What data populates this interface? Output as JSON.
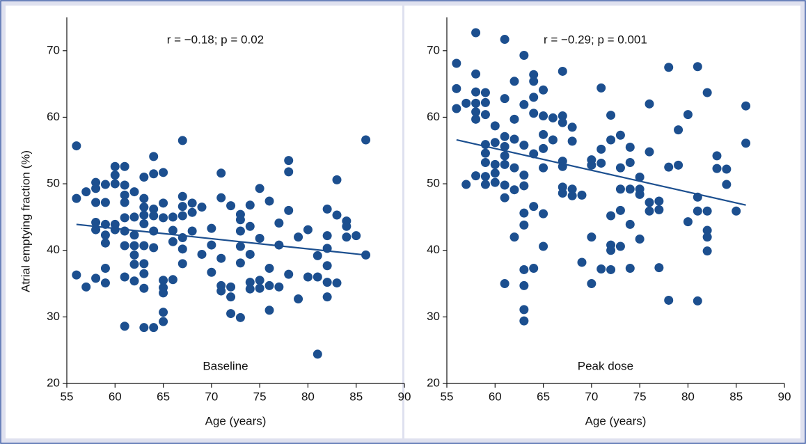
{
  "chart_data": [
    {
      "type": "scatter",
      "panel_label": "Baseline",
      "annotation": "r = −0.18; p = 0.02",
      "ylabel": "Atrial emptying fraction (%)",
      "xlabel": "Age (years)",
      "xlim": [
        55,
        90
      ],
      "ylim": [
        20,
        75
      ],
      "xticks": [
        55,
        60,
        65,
        70,
        75,
        80,
        85,
        90
      ],
      "yticks": [
        20,
        30,
        40,
        50,
        60,
        70
      ],
      "color": "#1c4f8f",
      "x": [
        56,
        56,
        56,
        57,
        57,
        58,
        58,
        58,
        58,
        58,
        58,
        59,
        59,
        59,
        59,
        59,
        59,
        59,
        60,
        60,
        60,
        60,
        60,
        61,
        61,
        61,
        61,
        61,
        61,
        61,
        61,
        61,
        62,
        62,
        62,
        62,
        62,
        62,
        62,
        63,
        63,
        63,
        63,
        63,
        63,
        63,
        63,
        63,
        63,
        64,
        64,
        64,
        64,
        64,
        64,
        64,
        65,
        65,
        65,
        65,
        65,
        65,
        65,
        65,
        66,
        66,
        66,
        66,
        67,
        67,
        67,
        67,
        67,
        67,
        67,
        68,
        68,
        68,
        69,
        69,
        70,
        70,
        70,
        71,
        71,
        71,
        71,
        71,
        72,
        72,
        72,
        72,
        73,
        73,
        73,
        73,
        73,
        73,
        74,
        74,
        74,
        74,
        74,
        75,
        75,
        75,
        75,
        76,
        76,
        76,
        76,
        77,
        77,
        77,
        78,
        78,
        78,
        78,
        79,
        79,
        80,
        80,
        81,
        81,
        81,
        82,
        82,
        82,
        82,
        82,
        82,
        83,
        83,
        83,
        84,
        84,
        84,
        85,
        86,
        86
      ],
      "values": [
        55.7,
        47.8,
        36.3,
        48.8,
        34.5,
        50.2,
        49.3,
        47.2,
        44.2,
        43.1,
        35.8,
        49.9,
        47.2,
        43.9,
        42.3,
        41.1,
        37.3,
        35.1,
        52.6,
        51.3,
        50.0,
        43.9,
        43.1,
        52.6,
        49.8,
        48.3,
        47.2,
        44.9,
        42.9,
        40.7,
        36.0,
        28.6,
        48.8,
        45.0,
        42.3,
        40.7,
        39.3,
        37.9,
        35.4,
        51.0,
        47.8,
        46.5,
        45.3,
        44.0,
        40.7,
        38.0,
        36.5,
        34.3,
        28.4,
        54.1,
        51.5,
        46.2,
        45.2,
        42.9,
        40.4,
        28.4,
        51.7,
        47.1,
        44.9,
        35.5,
        34.4,
        33.6,
        30.7,
        29.3,
        45.0,
        43.0,
        41.3,
        35.6,
        56.5,
        48.1,
        46.6,
        45.2,
        41.9,
        40.2,
        38.0,
        47.1,
        45.7,
        42.9,
        46.5,
        39.4,
        43.3,
        40.8,
        36.7,
        51.6,
        47.9,
        38.8,
        34.7,
        33.9,
        46.7,
        34.5,
        33.0,
        30.5,
        45.4,
        44.6,
        42.9,
        40.6,
        38.1,
        29.9,
        46.8,
        43.6,
        39.4,
        35.2,
        34.2,
        49.3,
        41.8,
        35.5,
        34.3,
        47.4,
        37.3,
        34.7,
        31.0,
        44.1,
        40.8,
        34.5,
        53.5,
        51.8,
        46.0,
        36.4,
        42.0,
        32.7,
        43.1,
        36.0,
        39.2,
        36.0,
        24.4,
        46.2,
        42.2,
        40.3,
        37.7,
        35.2,
        33.0,
        50.6,
        45.3,
        35.1,
        44.4,
        43.6,
        42.0,
        42.2,
        56.6,
        39.3
      ],
      "trend_line": {
        "x": [
          56,
          86
        ],
        "values": [
          43.9,
          39.3
        ]
      }
    },
    {
      "type": "scatter",
      "panel_label": "Peak dose",
      "annotation": "r = −0.29; p = 0.001",
      "xlabel": "Age (years)",
      "xlim": [
        55,
        90
      ],
      "ylim": [
        20,
        75
      ],
      "xticks": [
        55,
        60,
        65,
        70,
        75,
        80,
        85,
        90
      ],
      "yticks": [
        20,
        30,
        40,
        50,
        60,
        70
      ],
      "color": "#1c4f8f",
      "x": [
        56,
        56,
        56,
        57,
        57,
        58,
        58,
        58,
        58,
        58,
        58,
        58,
        59,
        59,
        59,
        59,
        59,
        59,
        59,
        59,
        60,
        60,
        60,
        60,
        60,
        61,
        61,
        61,
        61,
        61,
        61,
        61,
        61,
        61,
        62,
        62,
        62,
        62,
        62,
        62,
        63,
        63,
        63,
        63,
        63,
        63,
        63,
        63,
        63,
        63,
        63,
        64,
        64,
        64,
        64,
        64,
        64,
        64,
        65,
        65,
        65,
        65,
        65,
        65,
        65,
        66,
        66,
        67,
        67,
        67,
        67,
        67,
        67,
        67,
        68,
        68,
        68,
        68,
        69,
        69,
        70,
        70,
        70,
        70,
        71,
        71,
        71,
        71,
        72,
        72,
        72,
        72,
        72,
        72,
        73,
        73,
        73,
        73,
        73,
        74,
        74,
        74,
        74,
        74,
        75,
        75,
        75,
        75,
        76,
        76,
        76,
        76,
        77,
        77,
        77,
        78,
        78,
        78,
        79,
        79,
        80,
        80,
        81,
        81,
        81,
        81,
        82,
        82,
        82,
        82,
        82,
        83,
        83,
        84,
        84,
        85,
        86,
        86
      ],
      "values": [
        68.1,
        64.3,
        61.3,
        62.1,
        49.9,
        72.7,
        66.5,
        63.8,
        62.1,
        60.8,
        59.7,
        51.2,
        63.7,
        62.2,
        60.4,
        55.9,
        54.6,
        53.2,
        51.1,
        49.9,
        58.7,
        56.2,
        52.9,
        51.6,
        50.2,
        71.7,
        62.8,
        57.1,
        55.6,
        54.2,
        52.9,
        49.8,
        47.9,
        35.0,
        65.4,
        59.7,
        56.7,
        52.4,
        49.1,
        42.0,
        69.3,
        61.9,
        55.8,
        51.3,
        49.7,
        45.6,
        43.8,
        37.1,
        34.7,
        31.1,
        29.4,
        66.4,
        65.4,
        63.0,
        60.6,
        54.5,
        46.6,
        37.3,
        64.1,
        60.2,
        57.4,
        55.3,
        52.4,
        45.5,
        40.6,
        59.9,
        56.6,
        66.9,
        60.2,
        59.2,
        53.4,
        52.6,
        49.5,
        48.6,
        58.5,
        56.4,
        49.2,
        48.2,
        48.3,
        38.2,
        53.6,
        52.8,
        42.0,
        35.0,
        64.4,
        55.2,
        53.1,
        37.2,
        60.3,
        56.6,
        45.2,
        40.8,
        40.0,
        37.1,
        57.3,
        52.4,
        49.2,
        46.0,
        40.6,
        55.5,
        53.2,
        49.2,
        43.9,
        37.3,
        51.0,
        49.2,
        48.4,
        41.7,
        62.0,
        54.8,
        47.2,
        45.9,
        47.4,
        46.1,
        37.4,
        67.5,
        52.5,
        32.5,
        58.1,
        52.8,
        60.4,
        44.3,
        67.6,
        48.0,
        45.9,
        32.4,
        63.7,
        45.9,
        43.0,
        42.0,
        39.9,
        54.2,
        52.3,
        52.2,
        49.9,
        45.9,
        61.7,
        56.1
      ],
      "trend_line": {
        "x": [
          56,
          86
        ],
        "values": [
          56.6,
          46.8
        ]
      }
    }
  ]
}
